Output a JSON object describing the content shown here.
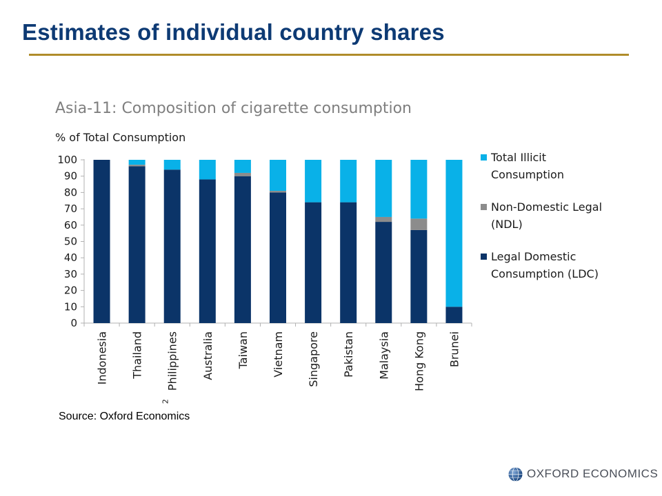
{
  "slide": {
    "title": "Estimates of individual country shares",
    "source": "Source: Oxford Economics",
    "logo_text": "OXFORD ECONOMICS",
    "colors": {
      "title": "#0d3a74",
      "rule": "#b08c2a"
    }
  },
  "chart_data": {
    "type": "bar",
    "stacked": true,
    "title": "Asia-11: Composition of cigarette consumption",
    "ylabel": "% of Total Consumption",
    "ylim": [
      0,
      100
    ],
    "yticks": [
      0,
      10,
      20,
      30,
      40,
      50,
      60,
      70,
      80,
      90,
      100
    ],
    "grid": false,
    "legend_position": "right",
    "categories": [
      "Indonesia",
      "Thailand",
      "Philippines",
      "Australia",
      "Taiwan",
      "Vietnam",
      "Singapore",
      "Pakistan",
      "Malaysia",
      "Hong Kong",
      "Brunei"
    ],
    "category_footnotes": {
      "Philippines": "2"
    },
    "series": [
      {
        "name": "Legal Domestic Consumption (LDC)",
        "color": "#0b3468",
        "values": [
          100,
          96,
          94,
          88,
          90,
          80,
          74,
          74,
          62,
          57,
          10
        ]
      },
      {
        "name": "Non-Domestic Legal (NDL)",
        "color": "#8c8c8c",
        "values": [
          0,
          1,
          0,
          0,
          2,
          1,
          0,
          0,
          3,
          7,
          0
        ]
      },
      {
        "name": "Total Illicit Consumption",
        "color": "#09b1e8",
        "values": [
          0,
          3,
          6,
          12,
          8,
          19,
          26,
          26,
          35,
          36,
          90
        ]
      }
    ],
    "legend_order": [
      "Total Illicit Consumption",
      "Non-Domestic Legal (NDL)",
      "Legal Domestic Consumption (LDC)"
    ],
    "legend_lines": {
      "Total Illicit Consumption": [
        "Total Illicit",
        "Consumption"
      ],
      "Non-Domestic Legal (NDL)": [
        "Non-Domestic Legal",
        "(NDL)"
      ],
      "Legal Domestic Consumption (LDC)": [
        "Legal Domestic",
        "Consumption (LDC)"
      ]
    }
  }
}
